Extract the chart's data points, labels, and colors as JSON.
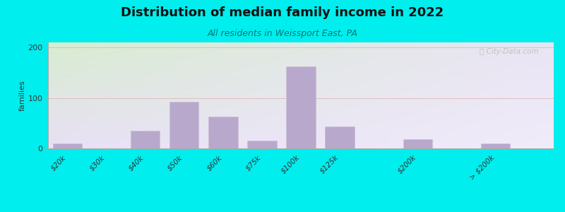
{
  "title": "Distribution of median family income in 2022",
  "subtitle": "All residents in Weissport East, PA",
  "ylabel": "families",
  "background_outer": "#00EEEE",
  "bar_color": "#b8a9cc",
  "bar_edge_color": "#c9bcd8",
  "categories": [
    "$20k",
    "$30k",
    "$40k",
    "$50k",
    "$60k",
    "$75k",
    "$100k",
    "$125k",
    "$200k",
    "> $200k"
  ],
  "values": [
    10,
    0,
    35,
    93,
    63,
    15,
    163,
    43,
    18,
    10
  ],
  "bar_positions": [
    0,
    1,
    2,
    3,
    4,
    5,
    6,
    7,
    9,
    11
  ],
  "xlim": [
    -0.5,
    12.5
  ],
  "ylim": [
    0,
    210
  ],
  "yticks": [
    0,
    100,
    200
  ],
  "grid_color": "#ddaaaa",
  "watermark": "City-Data.com",
  "plot_bg_top_left": "#e2f0d0",
  "plot_bg_top_right": "#f5f0f8",
  "plot_bg_bottom": "#ede8f5",
  "title_fontsize": 13,
  "subtitle_fontsize": 9,
  "subtitle_color": "#007777"
}
